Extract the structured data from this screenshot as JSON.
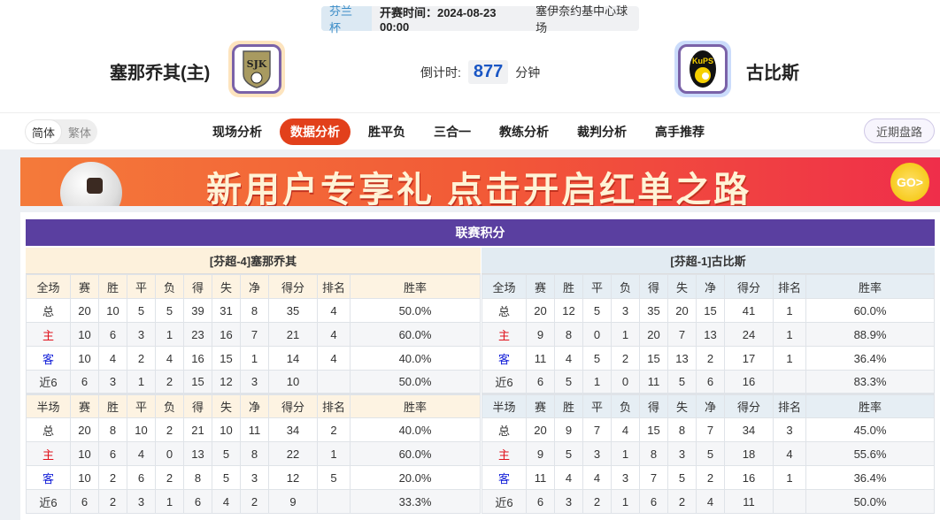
{
  "header": {
    "cup": "芬兰杯",
    "time": "开赛时间：2024-08-23 00:00",
    "venue": "塞伊奈约基中心球场",
    "home": {
      "name": "塞那乔其(主)",
      "logo_text": "SJK"
    },
    "away": {
      "name": "古比斯",
      "logo_text": "KuPS"
    },
    "countdown_label": "倒计时:",
    "countdown_value": "877",
    "countdown_unit": "分钟"
  },
  "nav": {
    "lang": [
      "简体",
      "繁体"
    ],
    "tabs": [
      "现场分析",
      "数据分析",
      "胜平负",
      "三合一",
      "教练分析",
      "裁判分析",
      "高手推荐"
    ],
    "active_tab": "数据分析",
    "recent": "近期盘路"
  },
  "banner": {
    "text": "新用户专享礼 点击开启红单之路",
    "go": "GO>"
  },
  "standings": {
    "title": "联赛积分",
    "columns": [
      "赛",
      "胜",
      "平",
      "负",
      "得",
      "失",
      "净",
      "得分",
      "排名",
      "胜率"
    ],
    "full_label": "全场",
    "half_label": "半场",
    "home": {
      "header": "[芬超-4]塞那乔其",
      "full": [
        [
          "总",
          "20",
          "10",
          "5",
          "5",
          "39",
          "31",
          "8",
          "35",
          "4",
          "50.0%"
        ],
        [
          "主",
          "10",
          "6",
          "3",
          "1",
          "23",
          "16",
          "7",
          "21",
          "4",
          "60.0%"
        ],
        [
          "客",
          "10",
          "4",
          "2",
          "4",
          "16",
          "15",
          "1",
          "14",
          "4",
          "40.0%"
        ],
        [
          "近6",
          "6",
          "3",
          "1",
          "2",
          "15",
          "12",
          "3",
          "10",
          "",
          "50.0%"
        ]
      ],
      "half": [
        [
          "总",
          "20",
          "8",
          "10",
          "2",
          "21",
          "10",
          "11",
          "34",
          "2",
          "40.0%"
        ],
        [
          "主",
          "10",
          "6",
          "4",
          "0",
          "13",
          "5",
          "8",
          "22",
          "1",
          "60.0%"
        ],
        [
          "客",
          "10",
          "2",
          "6",
          "2",
          "8",
          "5",
          "3",
          "12",
          "5",
          "20.0%"
        ],
        [
          "近6",
          "6",
          "2",
          "3",
          "1",
          "6",
          "4",
          "2",
          "9",
          "",
          "33.3%"
        ]
      ]
    },
    "away": {
      "header": "[芬超-1]古比斯",
      "full": [
        [
          "总",
          "20",
          "12",
          "5",
          "3",
          "35",
          "20",
          "15",
          "41",
          "1",
          "60.0%"
        ],
        [
          "主",
          "9",
          "8",
          "0",
          "1",
          "20",
          "7",
          "13",
          "24",
          "1",
          "88.9%"
        ],
        [
          "客",
          "11",
          "4",
          "5",
          "2",
          "15",
          "13",
          "2",
          "17",
          "1",
          "36.4%"
        ],
        [
          "近6",
          "6",
          "5",
          "1",
          "0",
          "11",
          "5",
          "6",
          "16",
          "",
          "83.3%"
        ]
      ],
      "half": [
        [
          "总",
          "20",
          "9",
          "7",
          "4",
          "15",
          "8",
          "7",
          "34",
          "3",
          "45.0%"
        ],
        [
          "主",
          "9",
          "5",
          "3",
          "1",
          "8",
          "3",
          "5",
          "18",
          "4",
          "55.6%"
        ],
        [
          "客",
          "11",
          "4",
          "4",
          "3",
          "7",
          "5",
          "2",
          "16",
          "1",
          "36.4%"
        ],
        [
          "近6",
          "6",
          "3",
          "2",
          "1",
          "6",
          "2",
          "4",
          "11",
          "",
          "50.0%"
        ]
      ]
    }
  },
  "colors": {
    "title_bar": "#5a3fa0",
    "active_tab": "#e2401b",
    "home_label": "#e0101a",
    "away_label": "#1622d9"
  }
}
